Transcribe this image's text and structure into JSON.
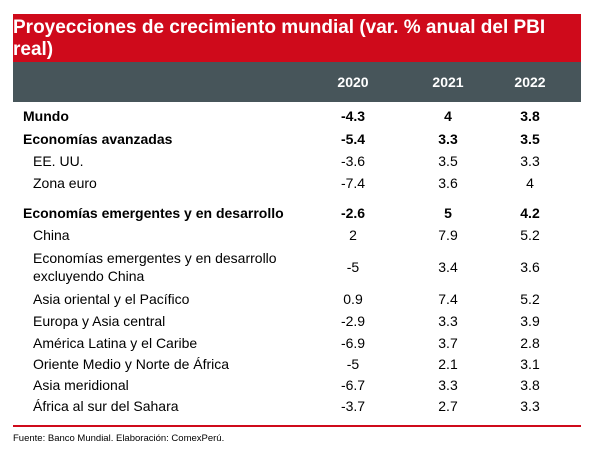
{
  "title": "Proyecciones de crecimiento mundial (var. % anual del PBI real)",
  "columns": [
    "2020",
    "2021",
    "2022"
  ],
  "rows": [
    {
      "label": "Mundo",
      "v2020": "-4.3",
      "v2021": "4",
      "v2022": "3.8",
      "bold": true
    },
    {
      "label": "Economías avanzadas",
      "v2020": "-5.4",
      "v2021": "3.3",
      "v2022": "3.5",
      "bold": true
    },
    {
      "label": "EE. UU.",
      "v2020": "-3.6",
      "v2021": "3.5",
      "v2022": "3.3"
    },
    {
      "label": "Zona euro",
      "v2020": "-7.4",
      "v2021": "3.6",
      "v2022": "4"
    },
    {
      "label": "Economías emergentes y en desarrollo",
      "v2020": "-2.6",
      "v2021": "5",
      "v2022": "4.2",
      "bold": true
    },
    {
      "label": "China",
      "v2020": "2",
      "v2021": "7.9",
      "v2022": "5.2"
    },
    {
      "label": "Economías emergentes y en desarrollo excluyendo China",
      "v2020": "-5",
      "v2021": "3.4",
      "v2022": "3.6"
    },
    {
      "label": "Asia oriental y el Pacífico",
      "v2020": "0.9",
      "v2021": "7.4",
      "v2022": "5.2"
    },
    {
      "label": "Europa y Asia central",
      "v2020": "-2.9",
      "v2021": "3.3",
      "v2022": "3.9"
    },
    {
      "label": "América Latina y el Caribe",
      "v2020": "-6.9",
      "v2021": "3.7",
      "v2022": "2.8"
    },
    {
      "label": "Oriente Medio y Norte de África",
      "v2020": "-5",
      "v2021": "2.1",
      "v2022": "3.1"
    },
    {
      "label": "Asia meridional",
      "v2020": "-6.7",
      "v2021": "3.3",
      "v2022": "3.8"
    },
    {
      "label": "África al sur del Sahara",
      "v2020": "-3.7",
      "v2021": "2.7",
      "v2022": "3.3"
    }
  ],
  "source": "Fuente: Banco Mundial. Elaboración: ComexPerú."
}
